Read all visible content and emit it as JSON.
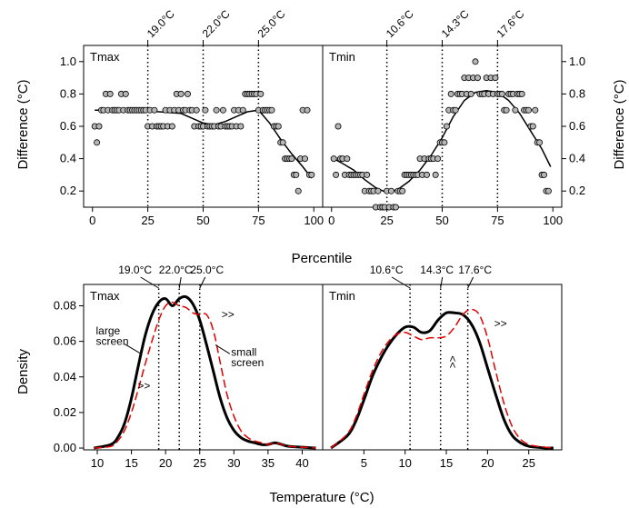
{
  "chart_data": [
    {
      "type": "scatter",
      "panel_label": "Tmax",
      "xlabel": "Percentile",
      "ylabel": "Difference (°C)",
      "xticks": [
        0,
        25,
        50,
        75,
        100
      ],
      "yticks": [
        0.2,
        0.4,
        0.6,
        0.8,
        1.0
      ],
      "xlim": [
        -4,
        104
      ],
      "ylim": [
        0.1,
        1.1
      ],
      "vlines": [
        {
          "x": 25,
          "label": "19.0°C"
        },
        {
          "x": 50,
          "label": "22.0°C"
        },
        {
          "x": 75,
          "label": "25.0°C"
        }
      ],
      "points": [
        [
          1,
          0.6
        ],
        [
          2,
          0.5
        ],
        [
          3,
          0.6
        ],
        [
          4,
          0.7
        ],
        [
          5,
          0.7
        ],
        [
          6,
          0.8
        ],
        [
          7,
          0.7
        ],
        [
          8,
          0.8
        ],
        [
          9,
          0.7
        ],
        [
          10,
          0.7
        ],
        [
          11,
          0.7
        ],
        [
          12,
          0.7
        ],
        [
          13,
          0.8
        ],
        [
          14,
          0.7
        ],
        [
          15,
          0.8
        ],
        [
          16,
          0.7
        ],
        [
          17,
          0.7
        ],
        [
          18,
          0.7
        ],
        [
          19,
          0.7
        ],
        [
          20,
          0.7
        ],
        [
          21,
          0.7
        ],
        [
          22,
          0.7
        ],
        [
          23,
          0.7
        ],
        [
          24,
          0.7
        ],
        [
          25,
          0.6
        ],
        [
          26,
          0.7
        ],
        [
          27,
          0.6
        ],
        [
          28,
          0.7
        ],
        [
          29,
          0.6
        ],
        [
          30,
          0.6
        ],
        [
          31,
          0.6
        ],
        [
          32,
          0.6
        ],
        [
          33,
          0.7
        ],
        [
          34,
          0.6
        ],
        [
          35,
          0.7
        ],
        [
          36,
          0.6
        ],
        [
          37,
          0.7
        ],
        [
          38,
          0.8
        ],
        [
          39,
          0.7
        ],
        [
          40,
          0.8
        ],
        [
          41,
          0.7
        ],
        [
          42,
          0.7
        ],
        [
          43,
          0.8
        ],
        [
          44,
          0.7
        ],
        [
          45,
          0.7
        ],
        [
          46,
          0.6
        ],
        [
          47,
          0.7
        ],
        [
          48,
          0.6
        ],
        [
          49,
          0.6
        ],
        [
          50,
          0.6
        ],
        [
          51,
          0.7
        ],
        [
          52,
          0.6
        ],
        [
          53,
          0.6
        ],
        [
          54,
          0.6
        ],
        [
          55,
          0.6
        ],
        [
          56,
          0.7
        ],
        [
          57,
          0.6
        ],
        [
          58,
          0.6
        ],
        [
          59,
          0.7
        ],
        [
          60,
          0.6
        ],
        [
          61,
          0.6
        ],
        [
          62,
          0.6
        ],
        [
          63,
          0.6
        ],
        [
          64,
          0.7
        ],
        [
          65,
          0.6
        ],
        [
          66,
          0.7
        ],
        [
          67,
          0.6
        ],
        [
          68,
          0.7
        ],
        [
          69,
          0.8
        ],
        [
          70,
          0.8
        ],
        [
          71,
          0.8
        ],
        [
          72,
          0.8
        ],
        [
          73,
          0.8
        ],
        [
          74,
          0.8
        ],
        [
          75,
          0.7
        ],
        [
          76,
          0.8
        ],
        [
          77,
          0.7
        ],
        [
          78,
          0.7
        ],
        [
          79,
          0.7
        ],
        [
          80,
          0.7
        ],
        [
          81,
          0.7
        ],
        [
          82,
          0.6
        ],
        [
          83,
          0.6
        ],
        [
          84,
          0.6
        ],
        [
          85,
          0.5
        ],
        [
          86,
          0.5
        ],
        [
          87,
          0.4
        ],
        [
          88,
          0.4
        ],
        [
          89,
          0.4
        ],
        [
          90,
          0.4
        ],
        [
          91,
          0.3
        ],
        [
          92,
          0.3
        ],
        [
          93,
          0.2
        ],
        [
          94,
          0.4
        ],
        [
          95,
          0.7
        ],
        [
          96,
          0.4
        ],
        [
          97,
          0.7
        ],
        [
          98,
          0.3
        ],
        [
          99,
          0.3
        ]
      ],
      "smooth": [
        [
          1,
          0.7
        ],
        [
          10,
          0.7
        ],
        [
          20,
          0.7
        ],
        [
          30,
          0.69
        ],
        [
          40,
          0.68
        ],
        [
          50,
          0.62
        ],
        [
          55,
          0.61
        ],
        [
          60,
          0.63
        ],
        [
          65,
          0.66
        ],
        [
          70,
          0.69
        ],
        [
          75,
          0.7
        ],
        [
          80,
          0.62
        ],
        [
          85,
          0.52
        ],
        [
          90,
          0.43
        ],
        [
          95,
          0.35
        ],
        [
          99,
          0.28
        ]
      ]
    },
    {
      "type": "scatter",
      "panel_label": "Tmin",
      "xlabel": "Percentile",
      "ylabel": "Difference (°C)",
      "xticks": [
        0,
        25,
        50,
        75,
        100
      ],
      "yticks": [
        0.2,
        0.4,
        0.6,
        0.8,
        1.0
      ],
      "xlim": [
        -4,
        104
      ],
      "ylim": [
        0.1,
        1.1
      ],
      "vlines": [
        {
          "x": 25,
          "label": "10.6°C"
        },
        {
          "x": 50,
          "label": "14.3°C"
        },
        {
          "x": 75,
          "label": "17.6°C"
        }
      ],
      "points": [
        [
          1,
          0.4
        ],
        [
          2,
          0.3
        ],
        [
          3,
          0.6
        ],
        [
          4,
          0.4
        ],
        [
          5,
          0.4
        ],
        [
          6,
          0.3
        ],
        [
          7,
          0.4
        ],
        [
          8,
          0.3
        ],
        [
          9,
          0.3
        ],
        [
          10,
          0.3
        ],
        [
          11,
          0.3
        ],
        [
          12,
          0.3
        ],
        [
          13,
          0.3
        ],
        [
          14,
          0.3
        ],
        [
          15,
          0.2
        ],
        [
          16,
          0.3
        ],
        [
          17,
          0.2
        ],
        [
          18,
          0.2
        ],
        [
          19,
          0.2
        ],
        [
          20,
          0.1
        ],
        [
          21,
          0.2
        ],
        [
          22,
          0.1
        ],
        [
          23,
          0.1
        ],
        [
          24,
          0.1
        ],
        [
          25,
          0.2
        ],
        [
          26,
          0.1
        ],
        [
          27,
          0.2
        ],
        [
          28,
          0.1
        ],
        [
          29,
          0.1
        ],
        [
          30,
          0.2
        ],
        [
          31,
          0.2
        ],
        [
          32,
          0.2
        ],
        [
          33,
          0.3
        ],
        [
          34,
          0.3
        ],
        [
          35,
          0.3
        ],
        [
          36,
          0.3
        ],
        [
          37,
          0.3
        ],
        [
          38,
          0.3
        ],
        [
          39,
          0.3
        ],
        [
          40,
          0.4
        ],
        [
          41,
          0.3
        ],
        [
          42,
          0.4
        ],
        [
          43,
          0.3
        ],
        [
          44,
          0.4
        ],
        [
          45,
          0.4
        ],
        [
          46,
          0.4
        ],
        [
          47,
          0.3
        ],
        [
          48,
          0.4
        ],
        [
          49,
          0.5
        ],
        [
          50,
          0.5
        ],
        [
          51,
          0.5
        ],
        [
          52,
          0.6
        ],
        [
          53,
          0.7
        ],
        [
          54,
          0.8
        ],
        [
          55,
          0.7
        ],
        [
          56,
          0.7
        ],
        [
          57,
          0.8
        ],
        [
          58,
          0.8
        ],
        [
          59,
          0.8
        ],
        [
          60,
          0.9
        ],
        [
          61,
          0.8
        ],
        [
          62,
          0.9
        ],
        [
          63,
          0.8
        ],
        [
          64,
          0.9
        ],
        [
          65,
          1.0
        ],
        [
          66,
          0.9
        ],
        [
          67,
          0.8
        ],
        [
          68,
          0.8
        ],
        [
          69,
          0.8
        ],
        [
          70,
          0.9
        ],
        [
          71,
          0.8
        ],
        [
          72,
          0.9
        ],
        [
          73,
          0.8
        ],
        [
          74,
          0.9
        ],
        [
          75,
          0.8
        ],
        [
          76,
          0.8
        ],
        [
          77,
          0.8
        ],
        [
          78,
          0.7
        ],
        [
          79,
          0.7
        ],
        [
          80,
          0.8
        ],
        [
          81,
          0.8
        ],
        [
          82,
          0.8
        ],
        [
          83,
          0.7
        ],
        [
          84,
          0.8
        ],
        [
          85,
          0.8
        ],
        [
          86,
          0.8
        ],
        [
          87,
          0.7
        ],
        [
          88,
          0.7
        ],
        [
          89,
          0.7
        ],
        [
          90,
          0.6
        ],
        [
          91,
          0.6
        ],
        [
          92,
          0.7
        ],
        [
          93,
          0.5
        ],
        [
          94,
          0.5
        ],
        [
          95,
          0.3
        ],
        [
          96,
          0.3
        ],
        [
          97,
          0.2
        ],
        [
          98,
          0.2
        ]
      ],
      "smooth": [
        [
          1,
          0.4
        ],
        [
          5,
          0.37
        ],
        [
          10,
          0.33
        ],
        [
          15,
          0.27
        ],
        [
          20,
          0.22
        ],
        [
          25,
          0.19
        ],
        [
          30,
          0.21
        ],
        [
          35,
          0.26
        ],
        [
          40,
          0.33
        ],
        [
          45,
          0.42
        ],
        [
          50,
          0.53
        ],
        [
          55,
          0.66
        ],
        [
          60,
          0.76
        ],
        [
          65,
          0.81
        ],
        [
          70,
          0.82
        ],
        [
          75,
          0.81
        ],
        [
          80,
          0.76
        ],
        [
          85,
          0.68
        ],
        [
          90,
          0.57
        ],
        [
          95,
          0.46
        ],
        [
          99,
          0.35
        ]
      ]
    },
    {
      "type": "line",
      "panel_label": "Tmax",
      "xlabel": "Temperature (°C)",
      "ylabel": "Density",
      "xticks": [
        10,
        15,
        20,
        25,
        30,
        35,
        40
      ],
      "yticks": [
        0.0,
        0.02,
        0.04,
        0.06,
        0.08
      ],
      "xlim": [
        8,
        43
      ],
      "ylim": [
        -0.001,
        0.092
      ],
      "vlines": [
        {
          "x": 19.0,
          "label": "19.0°C"
        },
        {
          "x": 22.0,
          "label": "22.0°C"
        },
        {
          "x": 25.0,
          "label": "25.0°C"
        }
      ],
      "annotations": [
        "large",
        "screen",
        "small",
        "screen",
        ">>",
        ">>"
      ],
      "series": [
        {
          "name": "large screen",
          "x": [
            9.5,
            12,
            13,
            14,
            15,
            16,
            17,
            18,
            19,
            20,
            21,
            22,
            23,
            24,
            25,
            26,
            27,
            28,
            29,
            30,
            31,
            32,
            33,
            34,
            35,
            36,
            37,
            38,
            40,
            42
          ],
          "y": [
            0.0,
            0.002,
            0.006,
            0.014,
            0.028,
            0.046,
            0.063,
            0.075,
            0.082,
            0.084,
            0.08,
            0.084,
            0.085,
            0.081,
            0.072,
            0.058,
            0.043,
            0.028,
            0.017,
            0.01,
            0.006,
            0.004,
            0.003,
            0.002,
            0.002,
            0.003,
            0.002,
            0.001,
            0.0005,
            0.0
          ]
        },
        {
          "name": "small screen",
          "x": [
            9.5,
            12,
            13,
            14,
            15,
            16,
            17,
            18,
            19,
            20,
            21,
            22,
            23,
            24,
            25,
            26,
            27,
            28,
            29,
            30,
            31,
            32,
            33,
            34,
            35,
            36,
            37,
            38,
            40,
            42
          ],
          "y": [
            0.0,
            0.001,
            0.004,
            0.01,
            0.02,
            0.033,
            0.047,
            0.06,
            0.072,
            0.08,
            0.082,
            0.08,
            0.079,
            0.076,
            0.075,
            0.075,
            0.066,
            0.048,
            0.03,
            0.018,
            0.01,
            0.006,
            0.004,
            0.003,
            0.002,
            0.003,
            0.002,
            0.001,
            0.0005,
            0.0
          ]
        }
      ]
    },
    {
      "type": "line",
      "panel_label": "Tmin",
      "xlabel": "Temperature (°C)",
      "ylabel": "Density",
      "xticks": [
        5,
        10,
        15,
        20,
        25
      ],
      "yticks": [
        0.0,
        0.02,
        0.04,
        0.06,
        0.08
      ],
      "xlim": [
        0,
        29
      ],
      "ylim": [
        -0.001,
        0.092
      ],
      "vlines": [
        {
          "x": 10.6,
          "label": "10.6°C"
        },
        {
          "x": 14.3,
          "label": "14.3°C"
        },
        {
          "x": 17.6,
          "label": "17.6°C"
        }
      ],
      "annotations": [
        ">>",
        "<<"
      ],
      "series": [
        {
          "name": "large screen",
          "x": [
            1,
            3,
            4,
            5,
            6,
            7,
            8,
            9,
            10,
            11,
            12,
            13,
            14,
            15,
            16,
            17,
            18,
            19,
            20,
            21,
            22,
            23,
            24,
            25,
            26,
            27,
            28
          ],
          "y": [
            0.0,
            0.007,
            0.015,
            0.027,
            0.04,
            0.05,
            0.058,
            0.064,
            0.068,
            0.068,
            0.065,
            0.066,
            0.072,
            0.076,
            0.076,
            0.075,
            0.07,
            0.06,
            0.045,
            0.03,
            0.016,
            0.007,
            0.003,
            0.001,
            0.0005,
            0.0,
            0.0
          ]
        },
        {
          "name": "small screen",
          "x": [
            1,
            3,
            4,
            5,
            6,
            7,
            8,
            9,
            10,
            11,
            12,
            13,
            14,
            15,
            16,
            17,
            18,
            19,
            20,
            21,
            22,
            23,
            24,
            25,
            26,
            27,
            28
          ],
          "y": [
            0.0,
            0.008,
            0.017,
            0.03,
            0.043,
            0.053,
            0.06,
            0.064,
            0.065,
            0.063,
            0.061,
            0.062,
            0.062,
            0.063,
            0.068,
            0.075,
            0.078,
            0.075,
            0.062,
            0.043,
            0.025,
            0.012,
            0.005,
            0.002,
            0.001,
            0.0005,
            0.0
          ]
        }
      ]
    }
  ]
}
